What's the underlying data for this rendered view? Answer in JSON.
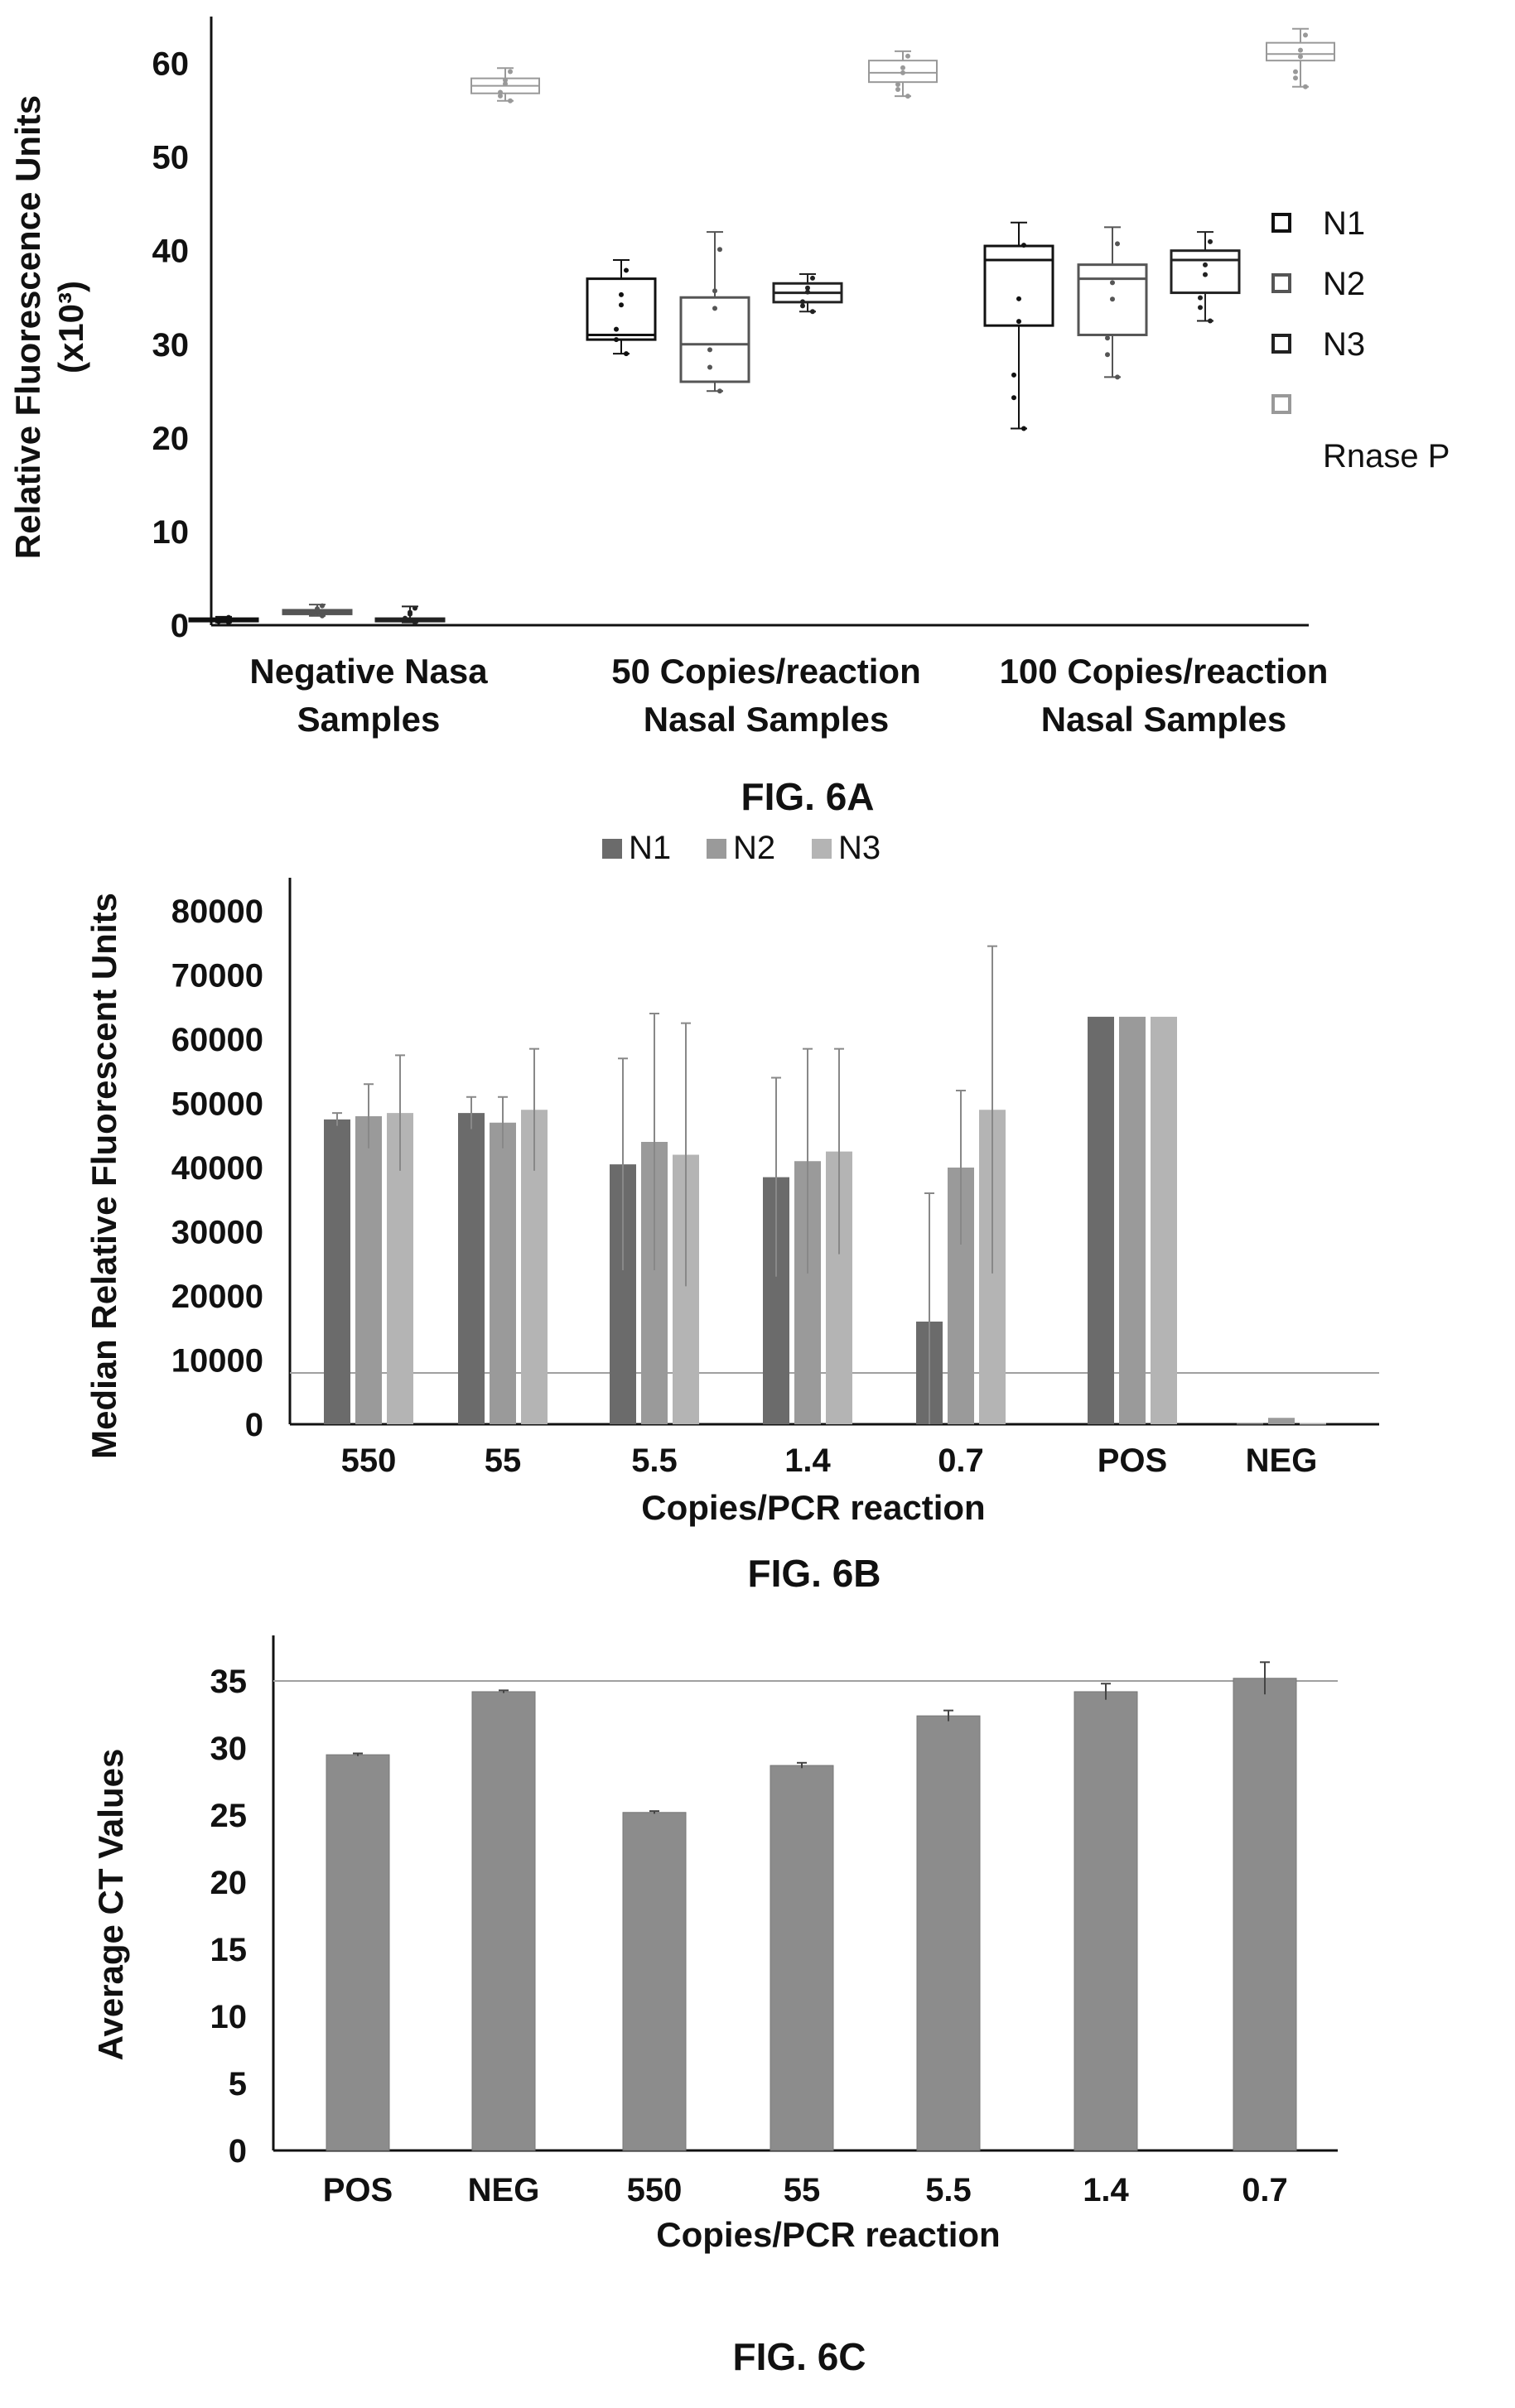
{
  "chart_data": [
    {
      "type": "box",
      "figure_label": "FIG. 6A",
      "ylabel_line1": "Relative Fluorescence Units",
      "ylabel_line2": "(x10³)",
      "xlabel": "",
      "ylim": [
        0,
        65
      ],
      "yticks": [
        "0",
        "10",
        "20",
        "30",
        "40",
        "50",
        "60"
      ],
      "categories": [
        [
          "Negative Nasa",
          "Samples"
        ],
        [
          "50 Copies/reaction",
          "Nasal Samples"
        ],
        [
          "100 Copies/reaction",
          "Nasal Samples"
        ]
      ],
      "legend_position": "right",
      "series": [
        {
          "name": "N1",
          "color": "#111111",
          "boxes": [
            {
              "min": 0.3,
              "q1": 0.5,
              "median": 0.6,
              "q3": 0.7,
              "max": 0.9
            },
            {
              "min": 29,
              "q1": 30.5,
              "median": 31,
              "q3": 37,
              "max": 39
            },
            {
              "min": 21,
              "q1": 32,
              "median": 39,
              "q3": 40.5,
              "max": 43
            }
          ]
        },
        {
          "name": "N2",
          "color": "#555555",
          "boxes": [
            {
              "min": 1.0,
              "q1": 1.2,
              "median": 1.4,
              "q3": 1.6,
              "max": 2.2
            },
            {
              "min": 25,
              "q1": 26,
              "median": 30,
              "q3": 35,
              "max": 42
            },
            {
              "min": 26.5,
              "q1": 31,
              "median": 37,
              "q3": 38.5,
              "max": 42.5
            }
          ]
        },
        {
          "name": "N3",
          "color": "#222222",
          "boxes": [
            {
              "min": 0.3,
              "q1": 0.5,
              "median": 0.6,
              "q3": 0.7,
              "max": 2.0
            },
            {
              "min": 33.5,
              "q1": 34.5,
              "median": 35.5,
              "q3": 36.5,
              "max": 37.5
            },
            {
              "min": 32.5,
              "q1": 35.5,
              "median": 39,
              "q3": 40,
              "max": 42
            }
          ]
        },
        {
          "name": "Rnase P",
          "color": "#999999",
          "boxes": [
            {
              "min": 56,
              "q1": 56.8,
              "median": 57.6,
              "q3": 58.4,
              "max": 59.5
            },
            {
              "min": 56.5,
              "q1": 58,
              "median": 59,
              "q3": 60.3,
              "max": 61.3
            },
            {
              "min": 57.5,
              "q1": 60.3,
              "median": 61,
              "q3": 62.2,
              "max": 63.7
            }
          ]
        }
      ]
    },
    {
      "type": "bar",
      "figure_label": "FIG. 6B",
      "ylabel": "Median Relative Fluorescent Units",
      "xlabel": "Copies/PCR reaction",
      "ylim": [
        0,
        80000
      ],
      "yticks": [
        "0",
        "10000",
        "20000",
        "30000",
        "40000",
        "50000",
        "60000",
        "70000",
        "80000"
      ],
      "categories": [
        "550",
        "55",
        "5.5",
        "1.4",
        "0.7",
        "POS",
        "NEG"
      ],
      "threshold": 8000,
      "legend_position": "top",
      "series": [
        {
          "name": "N1",
          "color": "#6b6b6b",
          "values": [
            47500,
            48500,
            40500,
            38500,
            16000,
            63500,
            200
          ],
          "errors": [
            1000,
            2500,
            16500,
            15500,
            20000,
            0,
            0
          ]
        },
        {
          "name": "N2",
          "color": "#9a9a9a",
          "values": [
            48000,
            47000,
            44000,
            41000,
            40000,
            63500,
            1000
          ],
          "errors": [
            5000,
            4000,
            20000,
            17500,
            12000,
            0,
            0
          ]
        },
        {
          "name": "N3",
          "color": "#b4b4b4",
          "values": [
            48500,
            49000,
            42000,
            42500,
            49000,
            63500,
            200
          ],
          "errors": [
            9000,
            9500,
            20500,
            16000,
            25500,
            0,
            0
          ]
        }
      ]
    },
    {
      "type": "bar",
      "figure_label": "FIG. 6C",
      "ylabel": "Average CT Values",
      "xlabel": "Copies/PCR reaction",
      "ylim": [
        0,
        38
      ],
      "yticks": [
        "0",
        "5",
        "10",
        "15",
        "20",
        "25",
        "30",
        "35"
      ],
      "categories": [
        "POS",
        "NEG",
        "550",
        "55",
        "5.5",
        "1.4",
        "0.7"
      ],
      "threshold": 35,
      "series": [
        {
          "color": "#8c8c8c",
          "values": [
            29.5,
            34.2,
            25.2,
            28.7,
            32.4,
            34.2,
            35.2
          ],
          "errors": [
            0.1,
            0.1,
            0.1,
            0.2,
            0.4,
            0.6,
            1.2
          ]
        }
      ]
    }
  ]
}
